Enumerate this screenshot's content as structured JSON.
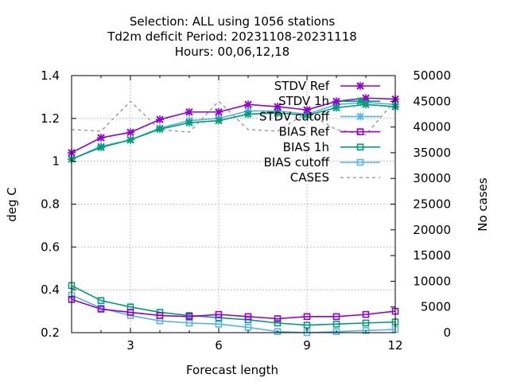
{
  "chart_data": {
    "type": "line",
    "title_lines": [
      "Selection: ALL using  1056 stations",
      "Td2m deficit   Period: 20231108-20231118",
      "Hours:  00,06,12,18"
    ],
    "xlabel": "Forecast length",
    "ylabel": "deg C",
    "y2label": "No cases",
    "xlim": [
      1,
      12
    ],
    "ylim": [
      0.2,
      1.4
    ],
    "y2lim": [
      0,
      50000
    ],
    "xticks": [
      "3",
      "6",
      "9",
      "12"
    ],
    "yticks": [
      "0.2",
      "0.4",
      "0.6",
      "0.8",
      "1",
      "1.2",
      "1.4"
    ],
    "y2ticks": [
      "0",
      "5000",
      "10000",
      "15000",
      "20000",
      "25000",
      "30000",
      "35000",
      "40000",
      "45000",
      "50000"
    ],
    "grid": true,
    "legend_position": "top-right",
    "x": [
      1,
      2,
      3,
      4,
      5,
      6,
      7,
      8,
      9,
      10,
      11,
      12
    ],
    "series": [
      {
        "name": "STDV Ref",
        "axis": "y",
        "color": "#9400d3",
        "marker": "x",
        "dash": false,
        "values": [
          1.04,
          1.11,
          1.135,
          1.195,
          1.23,
          1.23,
          1.265,
          1.255,
          1.24,
          1.28,
          1.295,
          1.29
        ]
      },
      {
        "name": "STDV 1h",
        "axis": "y",
        "color": "#009e73",
        "marker": "x",
        "dash": false,
        "values": [
          1.01,
          1.065,
          1.1,
          1.15,
          1.18,
          1.19,
          1.22,
          1.225,
          1.215,
          1.25,
          1.265,
          1.255
        ]
      },
      {
        "name": "STDV cutoff",
        "axis": "y",
        "color": "#56b4e9",
        "marker": "x",
        "dash": false,
        "values": [
          1.01,
          1.07,
          1.1,
          1.155,
          1.19,
          1.2,
          1.235,
          1.235,
          1.22,
          1.265,
          1.275,
          1.265
        ]
      },
      {
        "name": "BIAS Ref",
        "axis": "y",
        "color": "#9400d3",
        "marker": "square",
        "dash": false,
        "values": [
          0.355,
          0.31,
          0.295,
          0.28,
          0.275,
          0.285,
          0.275,
          0.265,
          0.275,
          0.275,
          0.285,
          0.3
        ]
      },
      {
        "name": "BIAS 1h",
        "axis": "y",
        "color": "#009e73",
        "marker": "square",
        "dash": false,
        "values": [
          0.42,
          0.35,
          0.32,
          0.295,
          0.28,
          0.27,
          0.26,
          0.245,
          0.235,
          0.24,
          0.245,
          0.25
        ]
      },
      {
        "name": "BIAS cutoff",
        "axis": "y",
        "color": "#56b4e9",
        "marker": "square",
        "dash": false,
        "values": [
          0.375,
          0.315,
          0.28,
          0.255,
          0.245,
          0.24,
          0.225,
          0.205,
          0.2,
          0.205,
          0.21,
          0.215
        ]
      },
      {
        "name": "CASES",
        "axis": "y2",
        "color": "#999999",
        "marker": "none",
        "dash": true,
        "values": [
          39500,
          39200,
          45000,
          39500,
          39000,
          45000,
          39500,
          39200,
          42800,
          39500,
          38500,
          45200
        ]
      }
    ]
  }
}
